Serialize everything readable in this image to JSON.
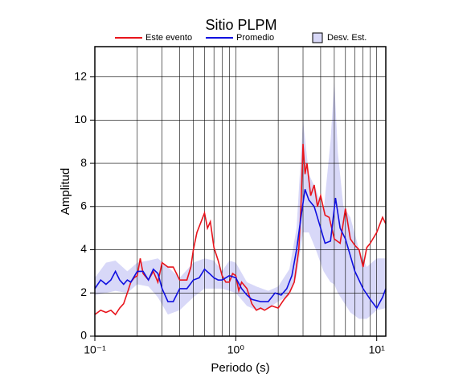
{
  "chart_data": {
    "type": "line",
    "title": "Sitio PLPM",
    "xlabel": "Periodo (s)",
    "ylabel": "Amplitud",
    "xscale": "log",
    "grid": true,
    "xlim": [
      0.1,
      11.6
    ],
    "ylim": [
      0,
      13.4
    ],
    "xticks": [
      {
        "value": 0.1,
        "label": "10⁻¹"
      },
      {
        "value": 1,
        "label": "10⁰"
      },
      {
        "value": 10,
        "label": "10¹"
      }
    ],
    "xminor": [
      0.2,
      0.3,
      0.4,
      0.5,
      0.6,
      0.7,
      0.8,
      0.9,
      2,
      3,
      4,
      5,
      6,
      7,
      8,
      9
    ],
    "yticks": [
      0,
      2,
      4,
      6,
      8,
      10,
      12
    ],
    "series": [
      {
        "name": "Este evento",
        "color": "#e8141c",
        "x": [
          0.1,
          0.11,
          0.12,
          0.13,
          0.14,
          0.15,
          0.16,
          0.17,
          0.18,
          0.19,
          0.2,
          0.21,
          0.22,
          0.24,
          0.26,
          0.28,
          0.3,
          0.33,
          0.36,
          0.4,
          0.45,
          0.48,
          0.5,
          0.53,
          0.56,
          0.6,
          0.63,
          0.66,
          0.7,
          0.75,
          0.8,
          0.85,
          0.9,
          0.95,
          1.0,
          1.05,
          1.1,
          1.2,
          1.3,
          1.4,
          1.5,
          1.6,
          1.8,
          2.0,
          2.2,
          2.4,
          2.6,
          2.8,
          2.9,
          3.0,
          3.1,
          3.2,
          3.4,
          3.6,
          3.8,
          4.0,
          4.3,
          4.6,
          5.0,
          5.5,
          6.0,
          6.5,
          7.0,
          7.5,
          8.0,
          8.5,
          9.0,
          10.0,
          11.0,
          11.6
        ],
        "values": [
          1.0,
          1.2,
          1.1,
          1.2,
          1.0,
          1.3,
          1.5,
          2.0,
          2.5,
          2.7,
          2.8,
          3.6,
          2.9,
          2.6,
          3.0,
          2.5,
          3.4,
          3.2,
          3.2,
          2.6,
          2.6,
          3.2,
          4.0,
          4.8,
          5.2,
          5.7,
          5.0,
          5.3,
          4.1,
          3.5,
          2.8,
          2.5,
          2.5,
          2.9,
          2.8,
          2.1,
          2.5,
          2.2,
          1.5,
          1.2,
          1.3,
          1.2,
          1.4,
          1.3,
          1.7,
          2.0,
          2.5,
          4.0,
          6.0,
          8.9,
          7.5,
          8.0,
          6.5,
          7.0,
          6.0,
          6.5,
          5.6,
          5.5,
          4.5,
          4.3,
          5.9,
          4.5,
          4.2,
          4.0,
          3.2,
          4.1,
          4.3,
          4.8,
          5.5,
          5.2
        ]
      },
      {
        "name": "Promedio",
        "color": "#1010e0",
        "x": [
          0.1,
          0.11,
          0.12,
          0.13,
          0.14,
          0.15,
          0.16,
          0.17,
          0.18,
          0.2,
          0.22,
          0.24,
          0.26,
          0.28,
          0.3,
          0.33,
          0.36,
          0.4,
          0.45,
          0.5,
          0.55,
          0.6,
          0.65,
          0.7,
          0.75,
          0.8,
          0.9,
          1.0,
          1.1,
          1.2,
          1.3,
          1.5,
          1.7,
          1.9,
          2.1,
          2.3,
          2.5,
          2.7,
          2.9,
          3.1,
          3.3,
          3.6,
          4.0,
          4.3,
          4.7,
          5.1,
          5.5,
          6.0,
          7.0,
          8.0,
          9.0,
          10.0,
          11.0,
          11.6
        ],
        "values": [
          2.2,
          2.6,
          2.4,
          2.6,
          3.0,
          2.6,
          2.4,
          2.6,
          2.5,
          3.0,
          3.0,
          2.6,
          3.1,
          2.9,
          2.2,
          1.6,
          1.6,
          2.2,
          2.2,
          2.6,
          2.7,
          3.1,
          2.9,
          2.7,
          2.6,
          2.6,
          2.8,
          2.7,
          2.2,
          1.9,
          1.7,
          1.6,
          1.6,
          2.0,
          1.9,
          2.2,
          2.8,
          4.0,
          5.5,
          6.8,
          6.3,
          6.0,
          5.0,
          4.3,
          4.4,
          6.4,
          5.0,
          4.5,
          3.0,
          2.2,
          1.7,
          1.3,
          1.8,
          2.2
        ]
      },
      {
        "name": "Desv. Est.",
        "color": "#d8d8f8",
        "band": true,
        "x": [
          0.1,
          0.12,
          0.14,
          0.17,
          0.2,
          0.24,
          0.28,
          0.33,
          0.4,
          0.5,
          0.6,
          0.7,
          0.8,
          0.9,
          1.0,
          1.2,
          1.4,
          1.7,
          2.0,
          2.4,
          2.7,
          3.0,
          3.3,
          3.7,
          4.2,
          4.7,
          5.0,
          5.3,
          5.8,
          6.5,
          7.5,
          8.5,
          10,
          11.6
        ],
        "upper": [
          2.7,
          3.4,
          3.5,
          3.0,
          3.4,
          3.5,
          3.6,
          3.2,
          2.7,
          3.4,
          3.6,
          3.5,
          3.0,
          3.5,
          3.4,
          2.5,
          2.3,
          2.1,
          2.3,
          3.1,
          5.0,
          10.0,
          7.5,
          6.8,
          5.8,
          9.0,
          11.8,
          8.5,
          6.0,
          5.5,
          4.0,
          3.2,
          3.6,
          3.6
        ],
        "lower": [
          1.9,
          2.0,
          2.1,
          2.0,
          2.4,
          2.3,
          1.8,
          1.0,
          1.2,
          1.8,
          2.2,
          2.2,
          2.2,
          2.1,
          2.0,
          1.4,
          1.2,
          1.3,
          1.6,
          1.9,
          2.8,
          4.8,
          4.8,
          4.0,
          3.0,
          2.5,
          2.4,
          2.0,
          1.6,
          1.1,
          0.8,
          0.8,
          1.2,
          1.3
        ]
      }
    ]
  }
}
